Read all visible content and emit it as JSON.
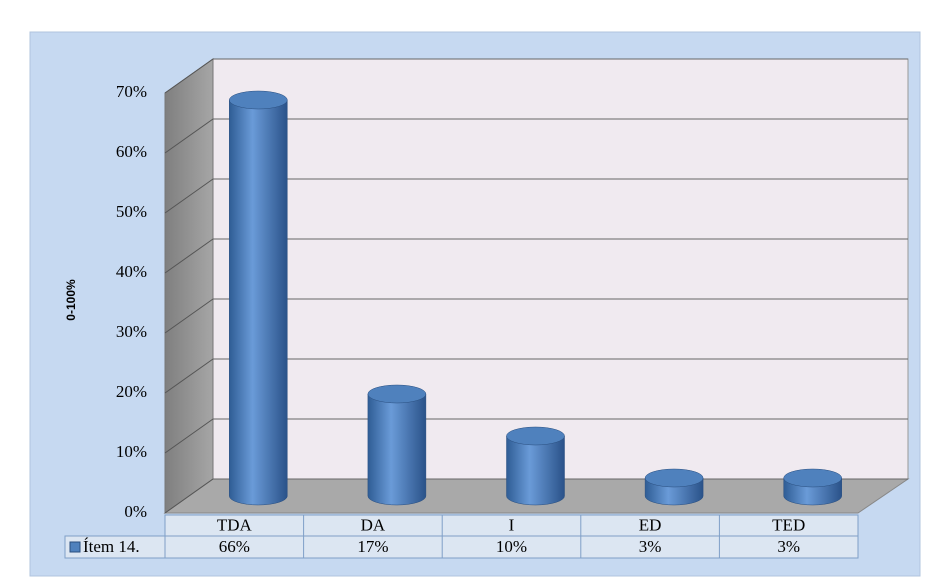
{
  "chart_data": {
    "type": "bar",
    "y_label": "0-100%",
    "categories": [
      "TDA",
      "DA",
      "I",
      "ED",
      "TED"
    ],
    "series": [
      {
        "name": "Ítem 14.",
        "color": "#4f81bd",
        "values": [
          66,
          17,
          10,
          3,
          3
        ],
        "value_labels": [
          "66%",
          "17%",
          "10%",
          "3%",
          "3%"
        ]
      }
    ],
    "ylim": [
      0,
      70
    ],
    "yticks": [
      {
        "value": 0,
        "label": "0%"
      },
      {
        "value": 10,
        "label": "10%"
      },
      {
        "value": 20,
        "label": "20%"
      },
      {
        "value": 30,
        "label": "30%"
      },
      {
        "value": 40,
        "label": "40%"
      },
      {
        "value": 50,
        "label": "50%"
      },
      {
        "value": 60,
        "label": "60%"
      },
      {
        "value": 70,
        "label": "70%"
      }
    ],
    "grid": true
  }
}
